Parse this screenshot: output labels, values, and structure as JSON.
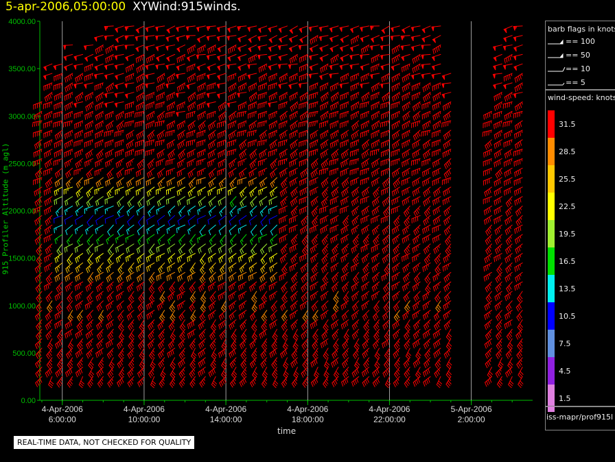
{
  "header": {
    "datetime": "5-apr-2006,05:00:00",
    "name": "XYWind:915winds."
  },
  "notice": "REAL-TIME DATA, NOT CHECKED FOR QUALITY",
  "legend": {
    "flags_title": "barb flags in knots",
    "flags": [
      "== 100",
      "== 50",
      "== 10",
      "== 5"
    ],
    "speed_title": "wind-speed: knots",
    "colorbar": [
      {
        "label": "31.5",
        "color": "#ff0000"
      },
      {
        "label": "28.5",
        "color": "#ff8c00"
      },
      {
        "label": "25.5",
        "color": "#ffc800"
      },
      {
        "label": "22.5",
        "color": "#ffff00"
      },
      {
        "label": "19.5",
        "color": "#a0f030"
      },
      {
        "label": "16.5",
        "color": "#00e000"
      },
      {
        "label": "13.5",
        "color": "#00f0f0"
      },
      {
        "label": "10.5",
        "color": "#0000ff"
      },
      {
        "label": "7.5",
        "color": "#6090e0"
      },
      {
        "label": "4.5",
        "color": "#9020e0"
      },
      {
        "label": "1.5",
        "color": "#e080e0"
      }
    ],
    "source": "iss-mapr/prof915l"
  },
  "chart_data": {
    "type": "wind-barb time-height",
    "xlabel": "time",
    "ylabel": "915 Profiler Altitude (m agl)",
    "ylim": [
      0,
      4000
    ],
    "yticks": [
      "0.00",
      "500.00",
      "1000.00",
      "1500.00",
      "2000.00",
      "2500.00",
      "3000.00",
      "3500.00",
      "4000.00"
    ],
    "xticks": [
      [
        "4-Apr-2006",
        "6:00:00"
      ],
      [
        "4-Apr-2006",
        "10:00:00"
      ],
      [
        "4-Apr-2006",
        "14:00:00"
      ],
      [
        "4-Apr-2006",
        "18:00:00"
      ],
      [
        "4-Apr-2006",
        "22:00:00"
      ],
      [
        "5-Apr-2006",
        "2:00:00"
      ]
    ],
    "xlim_hours": [
      4.9,
      29.0
    ],
    "grid": "vertical lines at major ticks",
    "profiles": {
      "start_hour": 5.0,
      "step_hours": 0.5,
      "count": 48,
      "gaps": [
        [
          25.0,
          26.8
        ]
      ],
      "max_alt": [
        3200,
        3550,
        3600,
        3800,
        3700,
        3800,
        3900,
        4000,
        4000,
        4000,
        4000,
        4000,
        4000,
        4000,
        4000,
        4000,
        4000,
        4000,
        4000,
        4000,
        4000,
        4000,
        4000,
        4000,
        4000,
        4000,
        4000,
        4000,
        4000,
        4000,
        4000,
        4000,
        4000,
        4000,
        4000,
        4000,
        4000,
        4000,
        4000,
        4000,
        3500,
        2900,
        2500,
        2600,
        3100,
        3800,
        4000,
        4000
      ],
      "low_speed_core": {
        "hours": [
          6.0,
          16.5
        ],
        "alt": [
          1300,
          2600
        ],
        "min_knots": 9
      }
    }
  }
}
